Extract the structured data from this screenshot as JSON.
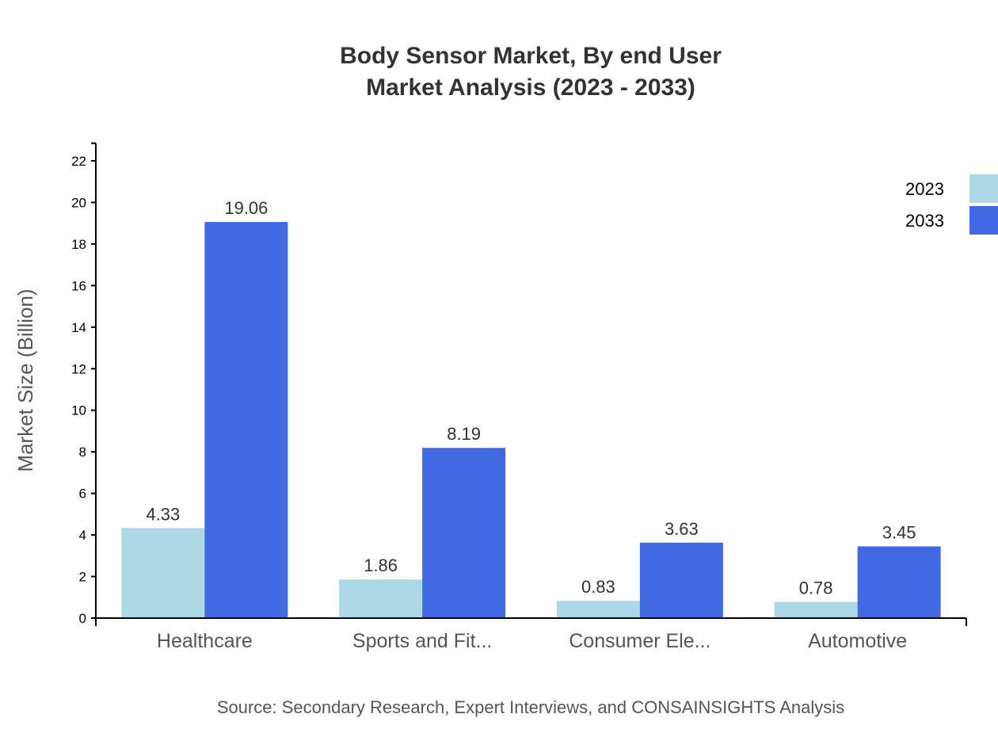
{
  "chart_data": {
    "type": "bar",
    "title": [
      "Body Sensor Market, By end User",
      "Market Analysis (2023 - 2033)"
    ],
    "xlabel": "",
    "ylabel": "Market Size (Billion)",
    "categories": [
      "Healthcare",
      "Sports and Fit...",
      "Consumer Ele...",
      "Automotive"
    ],
    "series": [
      {
        "name": "2023",
        "color": "#ADD8E6",
        "values": [
          4.33,
          1.86,
          0.83,
          0.78
        ]
      },
      {
        "name": "2033",
        "color": "#4169E1",
        "values": [
          19.06,
          8.19,
          3.63,
          3.45
        ]
      }
    ],
    "yticks": [
      0,
      2,
      4,
      6,
      8,
      10,
      12,
      14,
      16,
      18,
      20,
      22
    ],
    "ylim": [
      0,
      22.85
    ],
    "grid": false,
    "legend": "top-right",
    "source": "Source: Secondary Research, Expert Interviews, and CONSAINSIGHTS Analysis"
  }
}
